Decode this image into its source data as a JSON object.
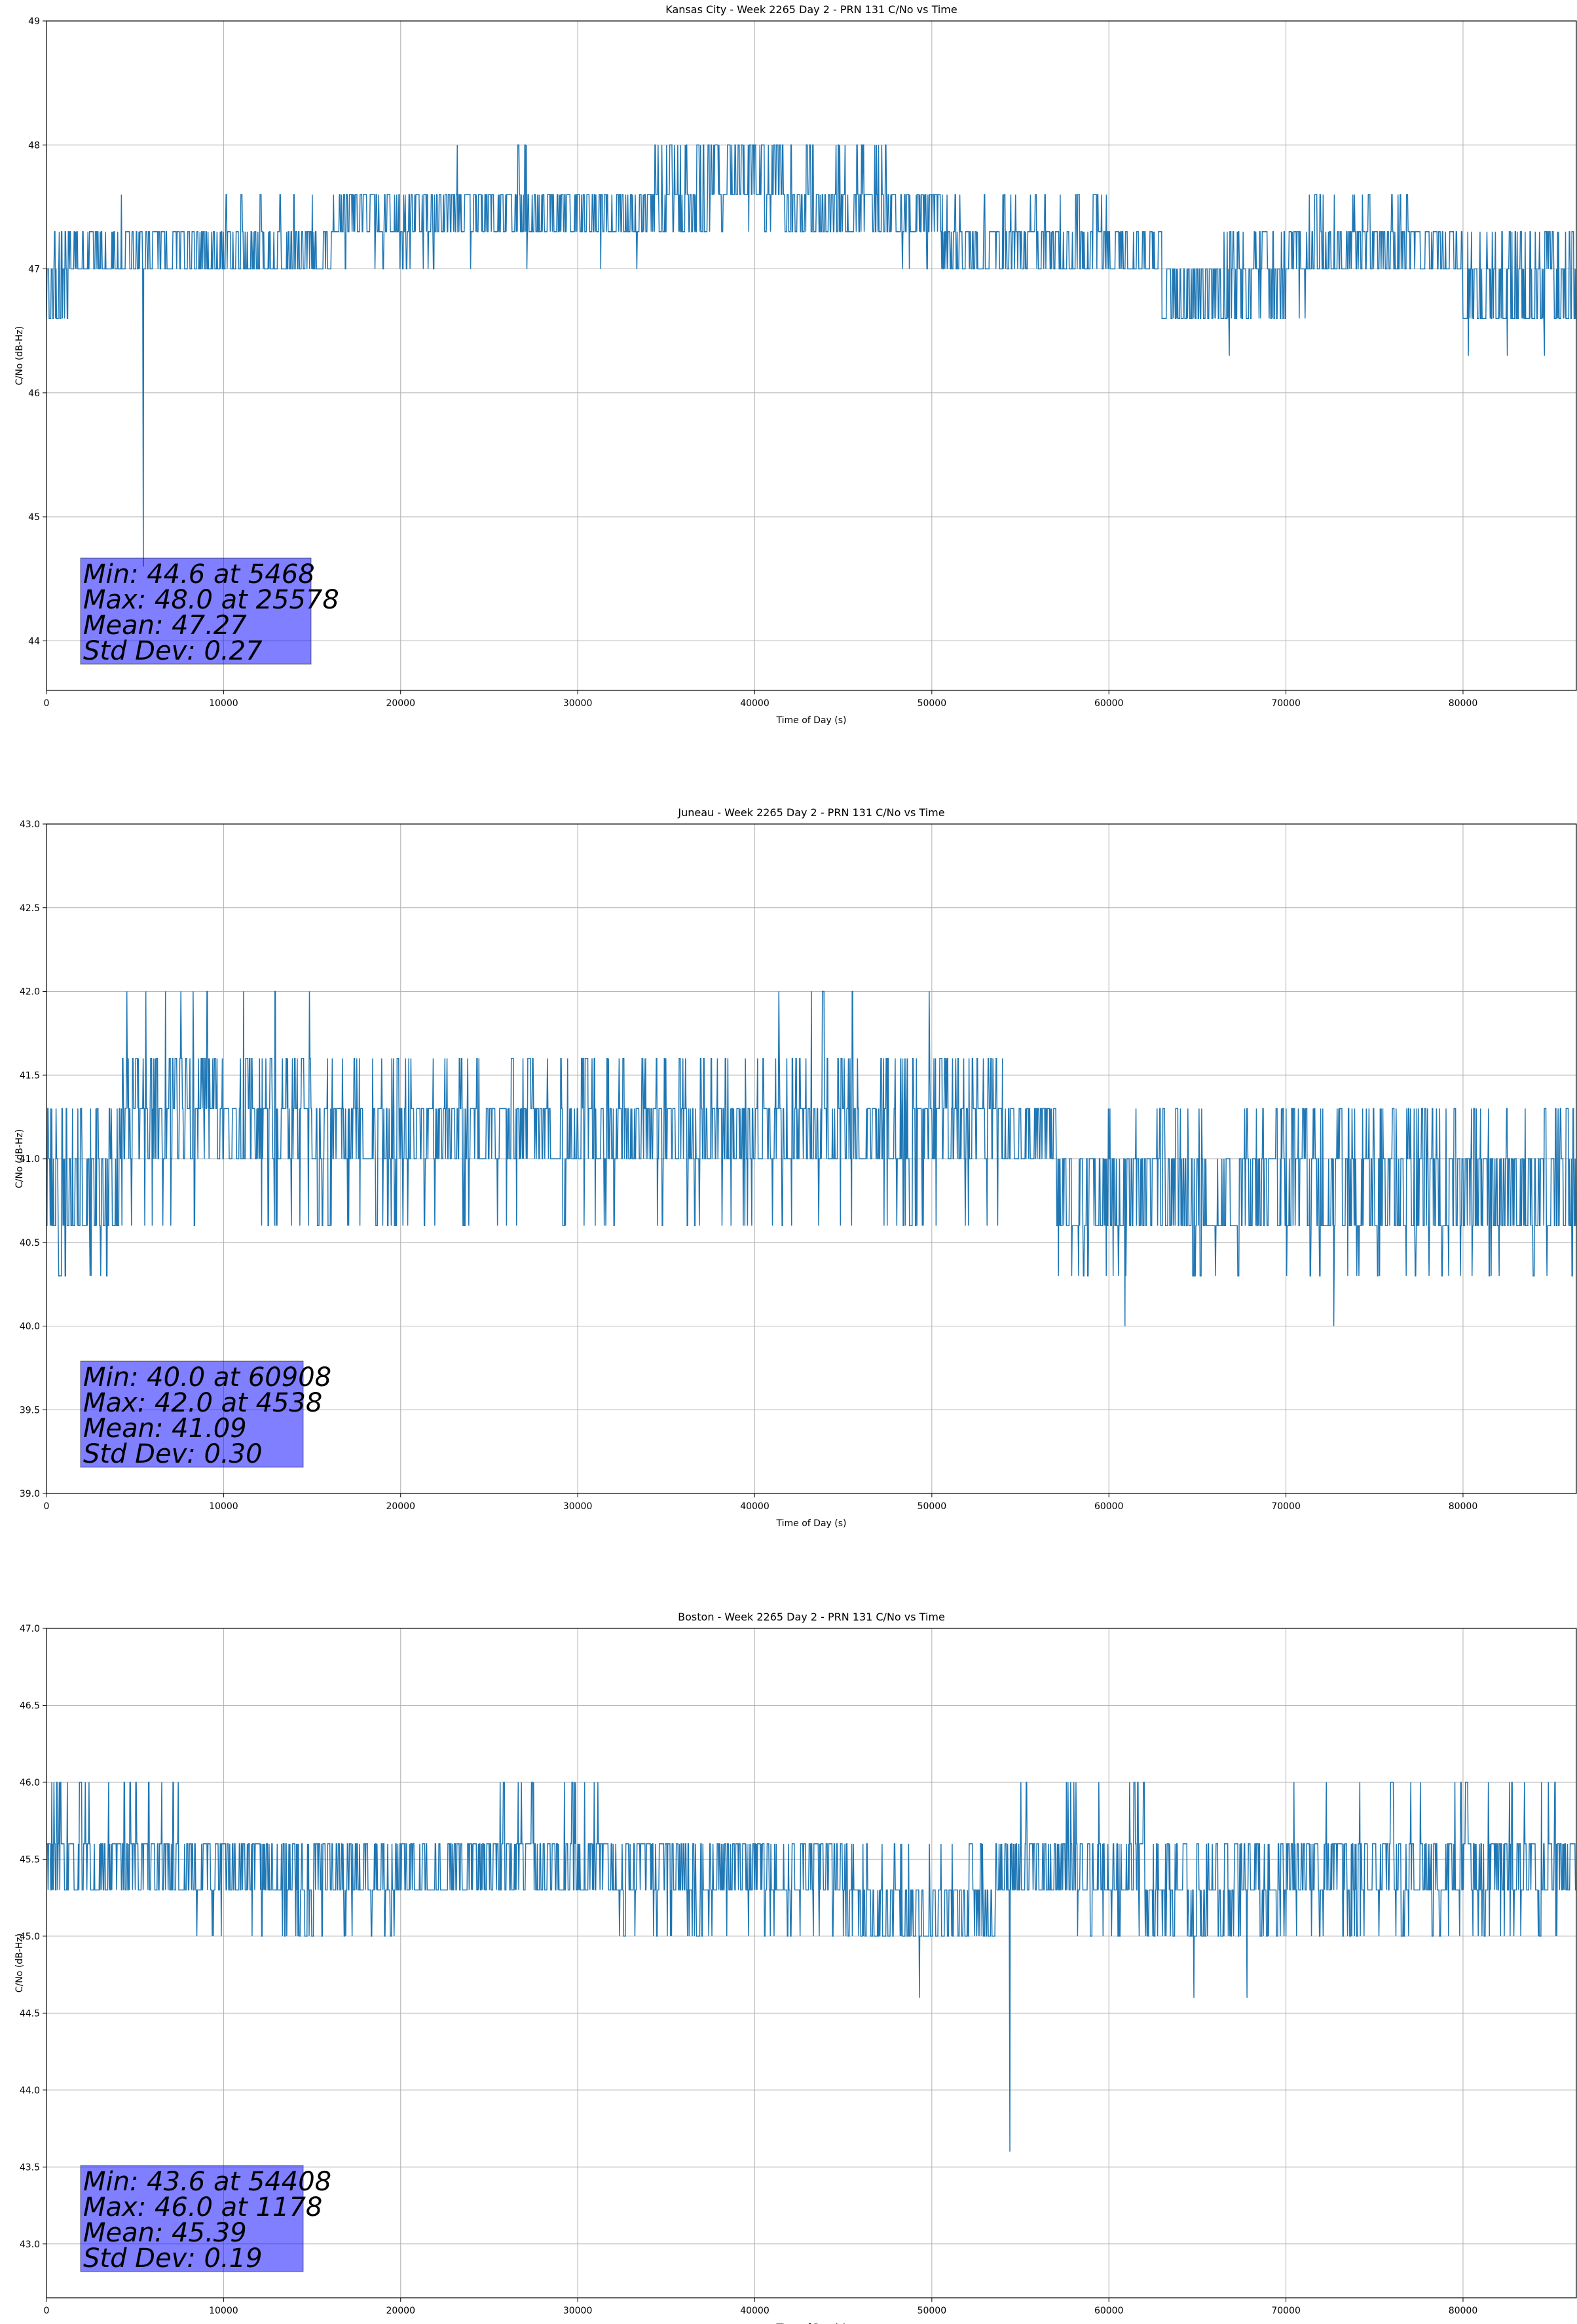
{
  "chart_data": [
    {
      "type": "line",
      "title": "Kansas City - Week 2265 Day 2 - PRN 131 C/No vs Time",
      "xlabel": "Time of Day (s)",
      "ylabel": "C/No (dB-Hz)",
      "xlim": [
        0,
        86400
      ],
      "ylim": [
        43.6,
        49
      ],
      "xticks": [
        0,
        10000,
        20000,
        30000,
        40000,
        50000,
        60000,
        70000,
        80000
      ],
      "yticks": [
        44,
        45,
        46,
        47,
        48,
        49
      ],
      "ytick_labels": [
        "44",
        "45",
        "46",
        "47",
        "48",
        "49"
      ],
      "grid": true,
      "color": "#1f77b4",
      "series": [
        {
          "name": "C/No",
          "mean": 47.27,
          "std": 0.27,
          "min": 44.6,
          "min_time": 5468,
          "max": 48.0,
          "max_time": 25578,
          "regimes": [
            {
              "x": [
                0,
                1200
              ],
              "levels": [
                47.0,
                46.6,
                47.3
              ],
              "p": [
                0.4,
                0.4,
                0.2
              ]
            },
            {
              "x": [
                1200,
                13000
              ],
              "levels": [
                47.0,
                47.3,
                47.6
              ],
              "p": [
                0.52,
                0.46,
                0.02
              ]
            },
            {
              "x": [
                13000,
                16000
              ],
              "levels": [
                47.0,
                47.3,
                47.6
              ],
              "p": [
                0.48,
                0.47,
                0.05
              ]
            },
            {
              "x": [
                16000,
                22000
              ],
              "levels": [
                47.3,
                47.6,
                47.0
              ],
              "p": [
                0.48,
                0.44,
                0.08
              ]
            },
            {
              "x": [
                22000,
                34000
              ],
              "levels": [
                47.3,
                47.6,
                48.0,
                47.0
              ],
              "p": [
                0.47,
                0.47,
                0.03,
                0.03
              ]
            },
            {
              "x": [
                34000,
                37500
              ],
              "levels": [
                47.3,
                47.6,
                48.0
              ],
              "p": [
                0.3,
                0.45,
                0.25
              ]
            },
            {
              "x": [
                37500,
                41500
              ],
              "levels": [
                47.6,
                48.0,
                47.3
              ],
              "p": [
                0.5,
                0.45,
                0.05
              ]
            },
            {
              "x": [
                41500,
                47500
              ],
              "levels": [
                47.3,
                47.6,
                48.0
              ],
              "p": [
                0.44,
                0.44,
                0.12
              ]
            },
            {
              "x": [
                47500,
                50500
              ],
              "levels": [
                47.3,
                47.6,
                47.0
              ],
              "p": [
                0.5,
                0.44,
                0.06
              ]
            },
            {
              "x": [
                50500,
                61000
              ],
              "levels": [
                47.0,
                47.3,
                47.6
              ],
              "p": [
                0.48,
                0.45,
                0.07
              ]
            },
            {
              "x": [
                61000,
                63000
              ],
              "levels": [
                47.0,
                47.3,
                46.6
              ],
              "p": [
                0.5,
                0.4,
                0.1
              ]
            },
            {
              "x": [
                63000,
                66500
              ],
              "levels": [
                46.6,
                47.0,
                47.3
              ],
              "p": [
                0.55,
                0.43,
                0.02
              ]
            },
            {
              "x": [
                66500,
                70000
              ],
              "levels": [
                47.0,
                46.6,
                47.3
              ],
              "p": [
                0.42,
                0.4,
                0.18
              ]
            },
            {
              "x": [
                70000,
                77000
              ],
              "levels": [
                47.0,
                47.3,
                47.6,
                46.6
              ],
              "p": [
                0.45,
                0.42,
                0.1,
                0.03
              ]
            },
            {
              "x": [
                77000,
                80000
              ],
              "levels": [
                47.0,
                47.3
              ],
              "p": [
                0.55,
                0.45
              ]
            },
            {
              "x": [
                80000,
                86400
              ],
              "levels": [
                46.6,
                47.0,
                47.3
              ],
              "p": [
                0.5,
                0.35,
                0.15
              ]
            }
          ],
          "spikes": [
            [
              5468,
              44.6
            ],
            [
              66800,
              46.3
            ],
            [
              80300,
              46.3
            ],
            [
              82500,
              46.3
            ],
            [
              84600,
              46.3
            ]
          ]
        }
      ],
      "annotation": [
        "Min: 44.6 at 5468",
        "Max: 48.0 at 25578",
        "Mean: 47.27",
        "Std Dev: 0.27"
      ]
    },
    {
      "type": "line",
      "title": "Juneau - Week 2265 Day 2 - PRN 131 C/No vs Time",
      "xlabel": "Time of Day (s)",
      "ylabel": "C/No (dB-Hz)",
      "xlim": [
        0,
        86400
      ],
      "ylim": [
        39.0,
        43.0
      ],
      "xticks": [
        0,
        10000,
        20000,
        30000,
        40000,
        50000,
        60000,
        70000,
        80000
      ],
      "yticks": [
        39.0,
        39.5,
        40.0,
        40.5,
        41.0,
        41.5,
        42.0,
        42.5,
        43.0
      ],
      "ytick_labels": [
        "39.0",
        "39.5",
        "40.0",
        "40.5",
        "41.0",
        "41.5",
        "42.0",
        "42.5",
        "43.0"
      ],
      "grid": true,
      "color": "#1f77b4",
      "series": [
        {
          "name": "C/No",
          "mean": 41.09,
          "std": 0.3,
          "min": 40.0,
          "min_time": 60908,
          "max": 42.0,
          "max_time": 4538,
          "regimes": [
            {
              "x": [
                0,
                4200
              ],
              "levels": [
                41.0,
                40.6,
                41.3,
                40.3
              ],
              "p": [
                0.38,
                0.42,
                0.15,
                0.05
              ]
            },
            {
              "x": [
                4200,
                15000
              ],
              "levels": [
                41.3,
                41.0,
                41.6,
                40.6,
                42.0
              ],
              "p": [
                0.4,
                0.28,
                0.24,
                0.05,
                0.03
              ]
            },
            {
              "x": [
                15000,
                21000
              ],
              "levels": [
                41.0,
                41.3,
                41.6,
                40.6
              ],
              "p": [
                0.4,
                0.37,
                0.15,
                0.08
              ]
            },
            {
              "x": [
                21000,
                38000
              ],
              "levels": [
                41.0,
                41.3,
                41.6,
                40.6
              ],
              "p": [
                0.42,
                0.4,
                0.1,
                0.08
              ]
            },
            {
              "x": [
                38000,
                54000
              ],
              "levels": [
                41.0,
                41.3,
                41.6,
                40.6,
                42.0
              ],
              "p": [
                0.34,
                0.34,
                0.22,
                0.08,
                0.02
              ]
            },
            {
              "x": [
                54000,
                57000
              ],
              "levels": [
                41.0,
                41.3
              ],
              "p": [
                0.5,
                0.5
              ]
            },
            {
              "x": [
                57000,
                62000
              ],
              "levels": [
                40.6,
                41.0,
                40.3,
                41.3
              ],
              "p": [
                0.52,
                0.34,
                0.1,
                0.04
              ]
            },
            {
              "x": [
                62000,
                68000
              ],
              "levels": [
                40.6,
                41.0,
                41.3,
                40.3
              ],
              "p": [
                0.45,
                0.4,
                0.1,
                0.05
              ]
            },
            {
              "x": [
                68000,
                86400
              ],
              "levels": [
                41.0,
                40.6,
                41.3,
                40.3
              ],
              "p": [
                0.4,
                0.4,
                0.14,
                0.06
              ]
            }
          ],
          "spikes": [
            [
              4538,
              42.0
            ],
            [
              43200,
              42.0
            ],
            [
              60908,
              40.0
            ],
            [
              72700,
              40.0
            ]
          ]
        }
      ],
      "annotation": [
        "Min: 40.0 at 60908",
        "Max: 42.0 at 4538",
        "Mean: 41.09",
        "Std Dev: 0.30"
      ]
    },
    {
      "type": "line",
      "title": "Boston - Week 2265 Day 2 - PRN 131 C/No vs Time",
      "xlabel": "Time of Day (s)",
      "ylabel": "C/No (dB-Hz)",
      "xlim": [
        0,
        86400
      ],
      "ylim": [
        42.65,
        47.0
      ],
      "xticks": [
        0,
        10000,
        20000,
        30000,
        40000,
        50000,
        60000,
        70000,
        80000
      ],
      "yticks": [
        43.0,
        43.5,
        44.0,
        44.5,
        45.0,
        45.5,
        46.0,
        46.5,
        47.0
      ],
      "ytick_labels": [
        "43.0",
        "43.5",
        "44.0",
        "44.5",
        "45.0",
        "45.5",
        "46.0",
        "46.5",
        "47.0"
      ],
      "grid": true,
      "color": "#1f77b4",
      "series": [
        {
          "name": "C/No",
          "mean": 45.39,
          "std": 0.19,
          "min": 43.6,
          "min_time": 54408,
          "max": 46.0,
          "max_time": 1178,
          "regimes": [
            {
              "x": [
                0,
                7500
              ],
              "levels": [
                45.3,
                45.6,
                46.0
              ],
              "p": [
                0.48,
                0.45,
                0.07
              ]
            },
            {
              "x": [
                7500,
                13000
              ],
              "levels": [
                45.3,
                45.6,
                45.0
              ],
              "p": [
                0.52,
                0.44,
                0.04
              ]
            },
            {
              "x": [
                13000,
                20000
              ],
              "levels": [
                45.3,
                45.6,
                45.0
              ],
              "p": [
                0.45,
                0.4,
                0.15
              ]
            },
            {
              "x": [
                20000,
                24000
              ],
              "levels": [
                45.3,
                45.6
              ],
              "p": [
                0.55,
                0.45
              ]
            },
            {
              "x": [
                24000,
                32000
              ],
              "levels": [
                45.3,
                45.6,
                46.0
              ],
              "p": [
                0.45,
                0.43,
                0.12
              ]
            },
            {
              "x": [
                32000,
                45000
              ],
              "levels": [
                45.3,
                45.6,
                45.0
              ],
              "p": [
                0.48,
                0.45,
                0.07
              ]
            },
            {
              "x": [
                45000,
                53500
              ],
              "levels": [
                45.0,
                45.3,
                45.6
              ],
              "p": [
                0.48,
                0.42,
                0.1
              ]
            },
            {
              "x": [
                53500,
                57000
              ],
              "levels": [
                45.3,
                45.6,
                46.0
              ],
              "p": [
                0.47,
                0.47,
                0.06
              ]
            },
            {
              "x": [
                57000,
                62000
              ],
              "levels": [
                45.3,
                45.6,
                45.0,
                46.0
              ],
              "p": [
                0.42,
                0.42,
                0.08,
                0.08
              ]
            },
            {
              "x": [
                62000,
                70000
              ],
              "levels": [
                45.3,
                45.0,
                45.6
              ],
              "p": [
                0.44,
                0.3,
                0.26
              ]
            },
            {
              "x": [
                70000,
                86400
              ],
              "levels": [
                45.3,
                45.6,
                45.0,
                46.0
              ],
              "p": [
                0.42,
                0.42,
                0.1,
                0.06
              ]
            }
          ],
          "spikes": [
            [
              1178,
              46.0
            ],
            [
              49300,
              44.6
            ],
            [
              54408,
              43.6
            ],
            [
              64800,
              44.6
            ],
            [
              67800,
              44.6
            ]
          ]
        }
      ],
      "annotation": [
        "Min: 43.6 at 54408",
        "Max: 46.0 at 1178",
        "Mean: 45.39",
        "Std Dev: 0.19"
      ]
    }
  ]
}
